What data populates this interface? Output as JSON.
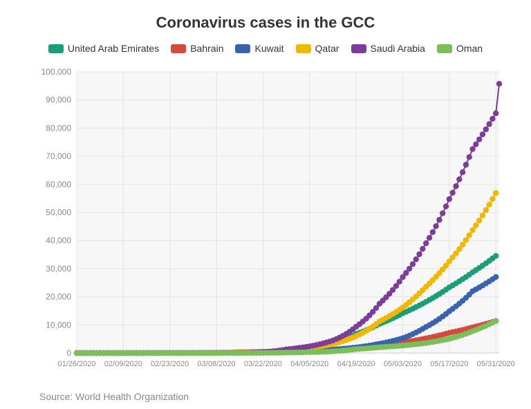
{
  "title": "Coronavirus cases in the GCC",
  "source": "Source: World Health Organization",
  "chart_data": {
    "type": "line",
    "title": "Coronavirus cases in the GCC",
    "xlabel": "",
    "ylabel": "",
    "x_tick_labels": [
      "01/26/2020",
      "02/09/2020",
      "02/23/2020",
      "03/08/2020",
      "03/22/2020",
      "04/05/2020",
      "04/19/2020",
      "05/03/2020",
      "05/17/2020",
      "05/31/2020"
    ],
    "y_tick_labels": [
      "0",
      "10,000",
      "20,000",
      "30,000",
      "40,000",
      "50,000",
      "60,000",
      "70,000",
      "80,000",
      "90,000",
      "100,000"
    ],
    "ylim": [
      0,
      100000
    ],
    "x_range": [
      "01/26/2020",
      "06/01/2020"
    ],
    "grid": true,
    "legend_position": "top",
    "series": [
      {
        "name": "United Arab Emirates",
        "color": "#1a9e77",
        "points": [
          [
            "01/26/2020",
            0
          ],
          [
            "03/01/2020",
            21
          ],
          [
            "03/15/2020",
            98
          ],
          [
            "03/29/2020",
            570
          ],
          [
            "04/05/2020",
            1505
          ],
          [
            "04/12/2020",
            3736
          ],
          [
            "04/19/2020",
            6781
          ],
          [
            "04/26/2020",
            10350
          ],
          [
            "05/03/2020",
            14163
          ],
          [
            "05/10/2020",
            18198
          ],
          [
            "05/17/2020",
            23358
          ],
          [
            "05/24/2020",
            28704
          ],
          [
            "05/31/2020",
            34557
          ]
        ]
      },
      {
        "name": "Bahrain",
        "color": "#d24b3c",
        "points": [
          [
            "01/26/2020",
            0
          ],
          [
            "03/01/2020",
            47
          ],
          [
            "03/15/2020",
            214
          ],
          [
            "03/29/2020",
            499
          ],
          [
            "04/05/2020",
            700
          ],
          [
            "04/12/2020",
            1136
          ],
          [
            "04/19/2020",
            1700
          ],
          [
            "04/26/2020",
            2647
          ],
          [
            "05/03/2020",
            3720
          ],
          [
            "05/10/2020",
            5236
          ],
          [
            "05/17/2020",
            7184
          ],
          [
            "05/24/2020",
            9138
          ],
          [
            "05/31/2020",
            11398
          ]
        ]
      },
      {
        "name": "Kuwait",
        "color": "#3a63ad",
        "points": [
          [
            "01/26/2020",
            0
          ],
          [
            "03/01/2020",
            56
          ],
          [
            "03/15/2020",
            112
          ],
          [
            "03/29/2020",
            255
          ],
          [
            "04/05/2020",
            556
          ],
          [
            "04/12/2020",
            1234
          ],
          [
            "04/19/2020",
            1995
          ],
          [
            "04/26/2020",
            3288
          ],
          [
            "05/03/2020",
            5278
          ],
          [
            "05/10/2020",
            9286
          ],
          [
            "05/17/2020",
            14850
          ],
          [
            "05/24/2020",
            21967
          ],
          [
            "05/31/2020",
            27043
          ]
        ]
      },
      {
        "name": "Qatar",
        "color": "#f2b701",
        "points": [
          [
            "01/26/2020",
            0
          ],
          [
            "03/01/2020",
            3
          ],
          [
            "03/15/2020",
            401
          ],
          [
            "03/29/2020",
            634
          ],
          [
            "04/05/2020",
            1832
          ],
          [
            "04/12/2020",
            3231
          ],
          [
            "04/19/2020",
            6015
          ],
          [
            "04/26/2020",
            11244
          ],
          [
            "05/03/2020",
            16191
          ],
          [
            "05/10/2020",
            23623
          ],
          [
            "05/17/2020",
            32604
          ],
          [
            "05/24/2020",
            43714
          ],
          [
            "05/31/2020",
            56910
          ]
        ]
      },
      {
        "name": "Saudi Arabia",
        "color": "#7d3c98",
        "points": [
          [
            "01/26/2020",
            0
          ],
          [
            "03/01/2020",
            0
          ],
          [
            "03/15/2020",
            103
          ],
          [
            "03/29/2020",
            1299
          ],
          [
            "04/05/2020",
            2385
          ],
          [
            "04/12/2020",
            4462
          ],
          [
            "04/19/2020",
            9362
          ],
          [
            "04/26/2020",
            17522
          ],
          [
            "05/03/2020",
            27011
          ],
          [
            "05/10/2020",
            39048
          ],
          [
            "05/17/2020",
            54752
          ],
          [
            "05/24/2020",
            72560
          ],
          [
            "05/31/2020",
            85261
          ],
          [
            "06/01/2020",
            95748
          ]
        ]
      },
      {
        "name": "Oman",
        "color": "#7bbf5a",
        "points": [
          [
            "01/26/2020",
            0
          ],
          [
            "03/01/2020",
            6
          ],
          [
            "03/15/2020",
            19
          ],
          [
            "03/29/2020",
            167
          ],
          [
            "04/05/2020",
            298
          ],
          [
            "04/12/2020",
            599
          ],
          [
            "04/19/2020",
            1410
          ],
          [
            "04/26/2020",
            2049
          ],
          [
            "05/03/2020",
            2637
          ],
          [
            "05/10/2020",
            3573
          ],
          [
            "05/17/2020",
            5029
          ],
          [
            "05/24/2020",
            7770
          ],
          [
            "05/31/2020",
            11437
          ]
        ]
      }
    ]
  }
}
